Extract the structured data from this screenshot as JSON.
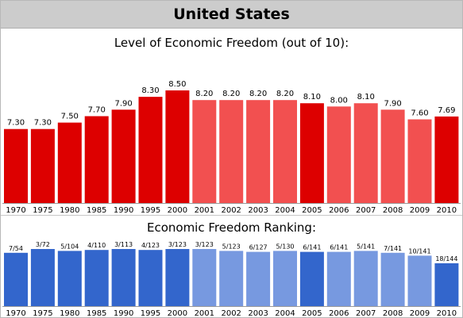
{
  "page": {
    "title": "United States"
  },
  "chart_data": [
    {
      "type": "bar",
      "title": "Level of Economic Freedom (out of 10):",
      "categories": [
        "1970",
        "1975",
        "1980",
        "1985",
        "1990",
        "1995",
        "2000",
        "2001",
        "2002",
        "2003",
        "2004",
        "2005",
        "2006",
        "2007",
        "2008",
        "2009",
        "2010"
      ],
      "values": [
        7.3,
        7.3,
        7.5,
        7.7,
        7.9,
        8.3,
        8.5,
        8.2,
        8.2,
        8.2,
        8.2,
        8.1,
        8.0,
        8.1,
        7.9,
        7.6,
        7.69
      ],
      "value_labels": [
        "7.30",
        "7.30",
        "7.50",
        "7.70",
        "7.90",
        "8.30",
        "8.50",
        "8.20",
        "8.20",
        "8.20",
        "8.20",
        "8.10",
        "8.00",
        "8.10",
        "7.90",
        "7.60",
        "7.69"
      ],
      "ylim": [
        5,
        10
      ],
      "colors": {
        "dark": "#dd0000",
        "light": "#f25050"
      },
      "shading": [
        "dark",
        "dark",
        "dark",
        "dark",
        "dark",
        "dark",
        "dark",
        "light",
        "light",
        "light",
        "light",
        "dark",
        "light",
        "light",
        "light",
        "light",
        "dark"
      ],
      "grid": false
    },
    {
      "type": "bar",
      "title": "Economic Freedom Ranking:",
      "categories": [
        "1970",
        "1975",
        "1980",
        "1985",
        "1990",
        "1995",
        "2000",
        "2001",
        "2002",
        "2003",
        "2004",
        "2005",
        "2006",
        "2007",
        "2008",
        "2009",
        "2010"
      ],
      "values": [
        7,
        3,
        5,
        4,
        3,
        4,
        3,
        3,
        5,
        6,
        5,
        6,
        6,
        5,
        7,
        10,
        18
      ],
      "value_labels": [
        "7/54",
        "3/72",
        "5/104",
        "4/110",
        "3/113",
        "4/123",
        "3/123",
        "3/123",
        "5/123",
        "6/127",
        "5/130",
        "6/141",
        "6/141",
        "5/141",
        "7/141",
        "10/141",
        "18/144"
      ],
      "colors": {
        "dark": "#3366cc",
        "light": "#7799e0"
      },
      "shading": [
        "dark",
        "dark",
        "dark",
        "dark",
        "dark",
        "dark",
        "dark",
        "light",
        "light",
        "light",
        "light",
        "dark",
        "light",
        "light",
        "light",
        "light",
        "dark"
      ],
      "grid": false
    }
  ]
}
